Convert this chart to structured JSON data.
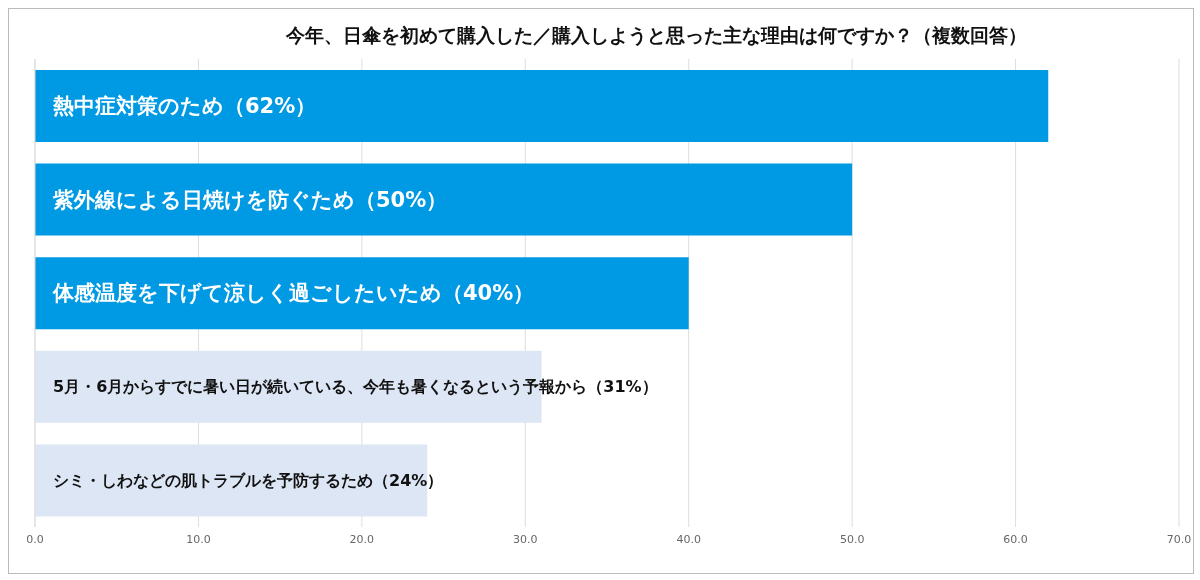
{
  "chart_data": {
    "type": "bar",
    "orientation": "horizontal",
    "title": "今年、日傘を初めて購入した／購入しようと思った主な理由は何ですか？（複数回答）",
    "categories": [
      "熱中症対策のため（62%）",
      "紫外線による日焼けを防ぐため（50%）",
      "体感温度を下げて涼しく過ごしたいため（40%）",
      "5月・6月からすでに暑い日が続いている、今年も暑くなるという予報から（31%）",
      "シミ・しわなどの肌トラブルを予防するため（24%）"
    ],
    "values": [
      62,
      50,
      40,
      31,
      24
    ],
    "colors": [
      "#0099e3",
      "#0099e3",
      "#0099e3",
      "#dde6f4",
      "#dde6f4"
    ],
    "xlim": [
      0,
      70
    ],
    "xticks": [
      {
        "value": 0,
        "label": "0.0"
      },
      {
        "value": 10,
        "label": "10.0"
      },
      {
        "value": 20,
        "label": "20.0"
      },
      {
        "value": 30,
        "label": "30.0"
      },
      {
        "value": 40,
        "label": "40.0"
      },
      {
        "value": 50,
        "label": "50.0"
      },
      {
        "value": 60,
        "label": "60.0"
      },
      {
        "value": 70,
        "label": "70.0"
      }
    ],
    "grid": "x",
    "tick_labels": "x"
  }
}
